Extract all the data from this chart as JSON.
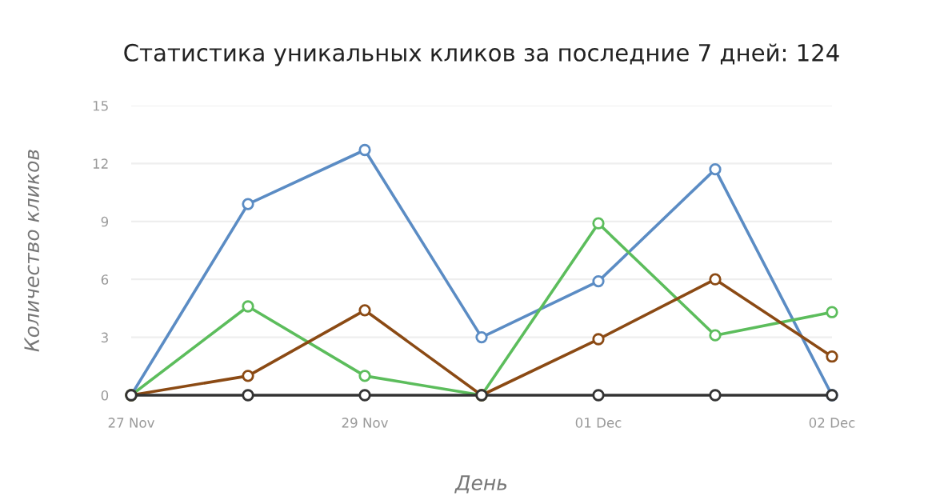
{
  "chart_data": {
    "type": "line",
    "title": "Статистика уникальных кликов за последние 7 дней: 124",
    "xlabel": "День",
    "ylabel": "Количество кликов",
    "categories": [
      "27 Nov",
      null,
      "29 Nov",
      null,
      "01 Dec",
      null,
      "02 Dec"
    ],
    "series": [
      {
        "color": "#5b8cc4",
        "values": [
          0,
          9.9,
          12.7,
          3,
          5.9,
          11.7,
          0
        ]
      },
      {
        "color": "#5cbd5c",
        "values": [
          0,
          4.6,
          1,
          0,
          8.9,
          3.1,
          4.3
        ]
      },
      {
        "color": "#8b4a14",
        "values": [
          0,
          1,
          4.4,
          0,
          2.9,
          6,
          2
        ]
      },
      {
        "color": "#333333",
        "values": [
          0,
          0,
          0,
          0,
          0,
          0,
          0
        ]
      }
    ],
    "ylim": [
      0,
      15
    ],
    "yticks": [
      0,
      3,
      6,
      9,
      12,
      15
    ],
    "grid": "y",
    "marker": "circle",
    "line_style": "solid",
    "legend": false
  }
}
